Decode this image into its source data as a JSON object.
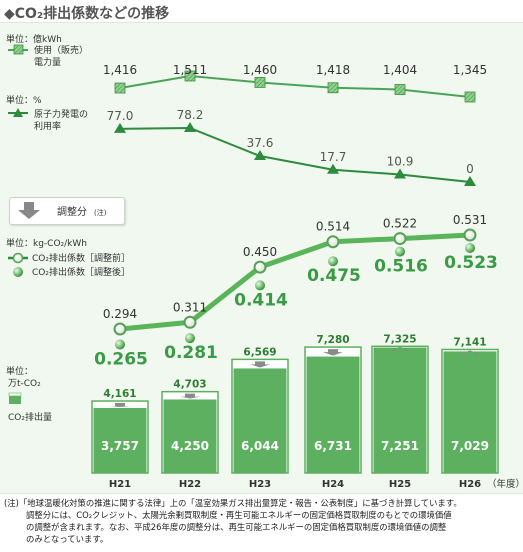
{
  "title": "◆CO₂排出係数などの推移",
  "legend": {
    "sales_unit": "単位：億kWh",
    "sales_label_1": "使用（販売）",
    "sales_label_2": "電力量",
    "nuclear_unit": "単位：%",
    "nuclear_label_1": "原子力発電の",
    "nuclear_label_2": "利用率",
    "adjust_label": "調整分",
    "adjust_note": "(注)",
    "coef_unit": "単位：kg-CO₂/kWh",
    "coef_before": "CO₂排出係数［調整前］",
    "coef_after": "CO₂排出係数［調整後］",
    "emis_unit_1": "単位：",
    "emis_unit_2": "万t-CO₂",
    "emis_label": "CO₂排出量"
  },
  "x_axis_suffix": "（年度）",
  "chart_data": [
    {
      "type": "line",
      "categories": [
        "H21",
        "H22",
        "H23",
        "H24",
        "H25",
        "H26"
      ],
      "series": [
        {
          "name": "使用（販売）電力量",
          "values": [
            1416,
            1511,
            1460,
            1418,
            1404,
            1345
          ],
          "labels": [
            "1,416",
            "1,511",
            "1,460",
            "1,418",
            "1,404",
            "1,345"
          ]
        }
      ]
    },
    {
      "type": "line",
      "categories": [
        "H21",
        "H22",
        "H23",
        "H24",
        "H25",
        "H26"
      ],
      "series": [
        {
          "name": "原子力発電の利用率",
          "values": [
            77.0,
            78.2,
            37.6,
            17.7,
            10.9,
            0
          ],
          "labels": [
            "77.0",
            "78.2",
            "37.6",
            "17.7",
            "10.9",
            "0"
          ]
        }
      ]
    },
    {
      "type": "line",
      "categories": [
        "H21",
        "H22",
        "H23",
        "H24",
        "H25",
        "H26"
      ],
      "series": [
        {
          "name": "CO₂排出係数［調整前］",
          "values": [
            0.294,
            0.311,
            0.45,
            0.514,
            0.522,
            0.531
          ],
          "labels": [
            "0.294",
            "0.311",
            "0.450",
            "0.514",
            "0.522",
            "0.531"
          ]
        },
        {
          "name": "CO₂排出係数［調整後］",
          "values": [
            0.265,
            0.281,
            0.414,
            0.475,
            0.516,
            0.523
          ],
          "labels": [
            "0.265",
            "0.281",
            "0.414",
            "0.475",
            "0.516",
            "0.523"
          ]
        }
      ]
    },
    {
      "type": "bar",
      "categories": [
        "H21",
        "H22",
        "H23",
        "H24",
        "H25",
        "H26"
      ],
      "series": [
        {
          "name": "CO₂排出量（調整前）",
          "values": [
            4161,
            4703,
            6569,
            7280,
            7325,
            7141
          ],
          "labels": [
            "4,161",
            "4,703",
            "6,569",
            "7,280",
            "7,325",
            "7,141"
          ]
        },
        {
          "name": "CO₂排出量（調整後）",
          "values": [
            3757,
            4250,
            6044,
            6731,
            7251,
            7029
          ],
          "labels": [
            "3,757",
            "4,250",
            "6,044",
            "6,731",
            "7,251",
            "7,029"
          ]
        }
      ]
    }
  ],
  "colors": {
    "dark_green": "#2e8b3d",
    "mid_green": "#4aa55a",
    "bar_green": "#5cb060",
    "bar_light": "#ffffff",
    "marker_green": "#5ab55a"
  },
  "footnote": {
    "line1": "(注)「地球温暖化対策の推進に関する法律」上の「温室効果ガス排出量算定・報告・公表制度」に基づき計算しています。",
    "line2": "調整分には、CO₂クレジット、太陽光余剰買取制度・再生可能エネルギーの固定価格買取制度のもとでの環境価値",
    "line3": "の調整が含まれます。なお、平成26年度の調整分は、再生可能エネルギーの固定価格買取制度の環境価値の調整",
    "line4": "のみとなっています。"
  }
}
